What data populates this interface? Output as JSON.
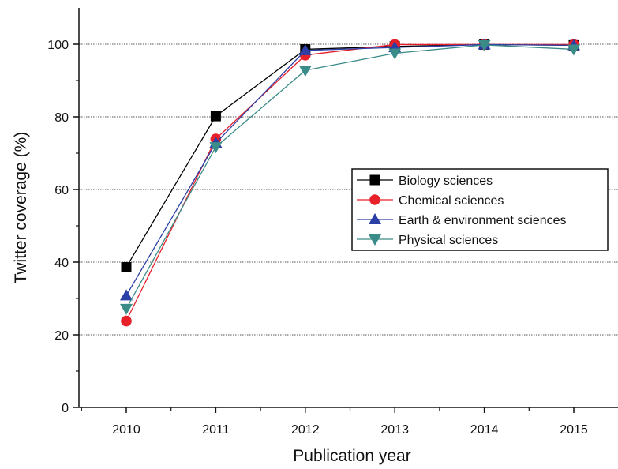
{
  "chart_data": {
    "type": "line",
    "title": "",
    "xlabel": "Publication year",
    "ylabel": "Twitter coverage (%)",
    "x": [
      2010,
      2011,
      2012,
      2013,
      2014,
      2015
    ],
    "xlim": [
      2009.5,
      2015.5
    ],
    "ylim": [
      0,
      110
    ],
    "yticks": [
      0,
      20,
      40,
      60,
      80,
      100
    ],
    "grid": "horizontal dotted",
    "legend_position": "right-middle",
    "series": [
      {
        "name": "Biology sciences",
        "color": "#000000",
        "marker": "square",
        "values": [
          38.6,
          80.2,
          98.6,
          99.4,
          99.9,
          99.7
        ]
      },
      {
        "name": "Chemical sciences",
        "color": "#e8202a",
        "marker": "circle",
        "values": [
          23.8,
          73.9,
          97.0,
          99.9,
          99.9,
          99.9
        ]
      },
      {
        "name": "Earth & environment sciences",
        "color": "#2b3fa6",
        "marker": "triangle-up",
        "values": [
          30.8,
          72.8,
          98.3,
          99.1,
          99.9,
          99.7
        ]
      },
      {
        "name": "Physical sciences",
        "color": "#3a8c88",
        "marker": "triangle-down",
        "values": [
          27.2,
          71.7,
          92.8,
          97.5,
          99.8,
          98.6
        ]
      }
    ]
  }
}
